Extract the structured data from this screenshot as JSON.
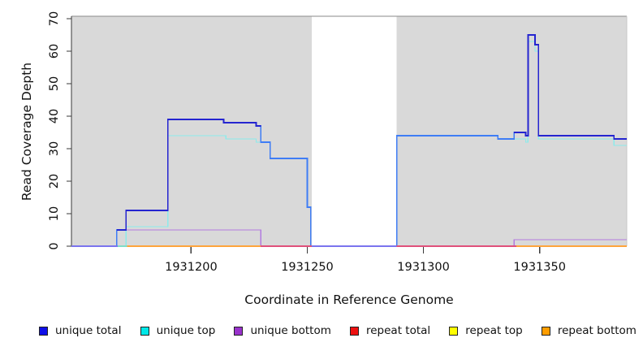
{
  "figure_title": "",
  "axes": {
    "y_label": "Read Coverage Depth",
    "x_label": "Coordinate in Reference Genome"
  },
  "chart_data": {
    "type": "line",
    "subtype": "step-coverage-plot",
    "title": "",
    "xlabel": "Coordinate in Reference Genome",
    "ylabel": "Read Coverage Depth",
    "xlim": [
      1931148.5,
      1931387.5
    ],
    "ylim": [
      0,
      70
    ],
    "x_ticks": [
      1931200,
      1931250,
      1931300,
      1931350
    ],
    "y_ticks": [
      0,
      10,
      20,
      30,
      40,
      50,
      60,
      70
    ],
    "grid": false,
    "plot_background": "#ffffff",
    "shaded_regions": [
      {
        "from": 1931148.5,
        "to": 1931252,
        "color": "#D9D9D9"
      },
      {
        "from": 1931288.5,
        "to": 1931387.5,
        "color": "#D9D9D9"
      }
    ],
    "series": [
      {
        "name": "unique total",
        "line_color": "#2525D0",
        "overlap_color": "#3F7DF5",
        "width": 1.8,
        "steps": [
          [
            1931148.5,
            0
          ],
          [
            1931168,
            5
          ],
          [
            1931172,
            11
          ],
          [
            1931190,
            39
          ],
          [
            1931214,
            38
          ],
          [
            1931228,
            37
          ],
          [
            1931230,
            32
          ],
          [
            1931234,
            27
          ],
          [
            1931250,
            12
          ],
          [
            1931251.5,
            0
          ],
          [
            1931288.5,
            34
          ],
          [
            1931332,
            33
          ],
          [
            1931339,
            35
          ],
          [
            1931344,
            34
          ],
          [
            1931345,
            65
          ],
          [
            1931348,
            62
          ],
          [
            1931349.5,
            34
          ],
          [
            1931382,
            33
          ]
        ]
      },
      {
        "name": "unique top",
        "line_color": "#8CEBEB",
        "width": 1.4,
        "steps": [
          [
            1931148.5,
            0
          ],
          [
            1931172,
            6
          ],
          [
            1931190,
            34
          ],
          [
            1931215,
            33
          ],
          [
            1931228,
            32
          ],
          [
            1931234,
            27
          ],
          [
            1931250,
            12
          ],
          [
            1931251.5,
            0
          ],
          [
            1931288.5,
            34
          ],
          [
            1931332,
            33
          ],
          [
            1931344,
            32
          ],
          [
            1931345,
            63
          ],
          [
            1931348,
            60
          ],
          [
            1931349.5,
            33
          ],
          [
            1931382,
            31
          ]
        ]
      },
      {
        "name": "unique bottom",
        "line_color": "#B27BE0",
        "width": 1.4,
        "steps": [
          [
            1931148.5,
            0
          ],
          [
            1931168,
            5
          ],
          [
            1931230,
            0
          ],
          [
            1931339,
            2
          ]
        ]
      },
      {
        "name": "repeat total",
        "line_color": "#E0517B",
        "width": 1.4,
        "steps": [
          [
            1931148.5,
            0
          ]
        ]
      },
      {
        "name": "repeat top",
        "line_color": "#FFFF00",
        "width": 1.4,
        "steps": [
          [
            1931148.5,
            0
          ]
        ]
      },
      {
        "name": "repeat bottom",
        "line_color": "#FFA43C",
        "width": 1.4,
        "steps": [
          [
            1931148.5,
            0
          ]
        ]
      }
    ],
    "baseline_segments": [
      {
        "from": 1931148.5,
        "to": 1931168.5,
        "color": "#7B74EE"
      },
      {
        "from": 1931168.5,
        "to": 1931172.5,
        "color": "#7FDDC8"
      },
      {
        "from": 1931172.5,
        "to": 1931230,
        "color": "#FFA43C"
      },
      {
        "from": 1931230,
        "to": 1931252,
        "color": "#E0517B"
      },
      {
        "from": 1931252,
        "to": 1931288.5,
        "color": "#7B74EE"
      },
      {
        "from": 1931288.5,
        "to": 1931340,
        "color": "#E0517B"
      },
      {
        "from": 1931340,
        "to": 1931387.5,
        "color": "#FFA43C"
      }
    ],
    "legend": {
      "position": "bottom",
      "entries": [
        {
          "label": "unique total",
          "color": "#0F0FE8"
        },
        {
          "label": "unique top",
          "color": "#00E8E8"
        },
        {
          "label": "unique bottom",
          "color": "#9932CC"
        },
        {
          "label": "repeat total",
          "color": "#EE1111"
        },
        {
          "label": "repeat top",
          "color": "#FFFF00"
        },
        {
          "label": "repeat bottom",
          "color": "#FF9D00"
        }
      ]
    }
  }
}
